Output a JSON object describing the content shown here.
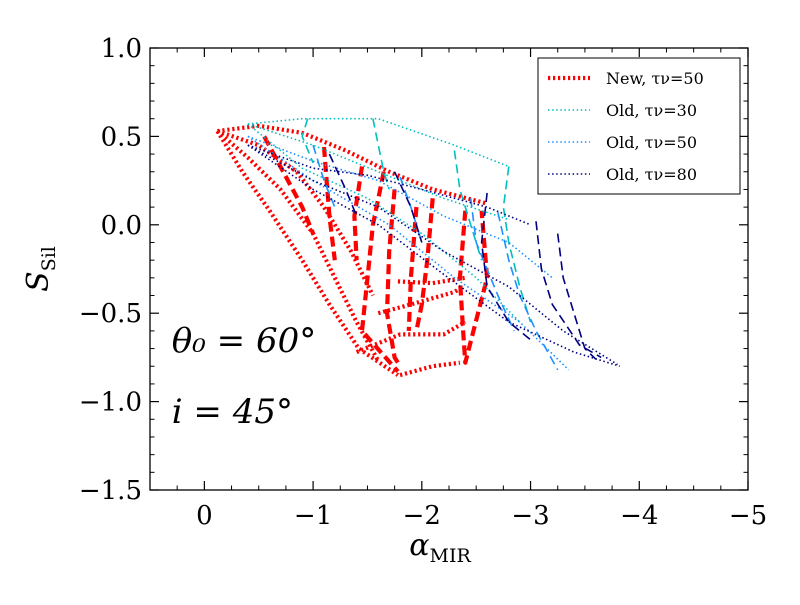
{
  "chart_data": {
    "type": "line",
    "xlabel": "α",
    "xlabel_sub": "MIR",
    "ylabel": "S",
    "ylabel_sub": "Sil",
    "xlim": [
      0.5,
      -5.0
    ],
    "ylim": [
      -1.5,
      1.0
    ],
    "xticks": [
      0,
      -1,
      -2,
      -3,
      -4,
      -5
    ],
    "xtick_labels": [
      "0",
      "−1",
      "−2",
      "−3",
      "−4",
      "−5"
    ],
    "yticks": [
      1.0,
      0.5,
      0.0,
      -0.5,
      -1.0,
      -1.5
    ],
    "ytick_labels": [
      "1.0",
      "0.5",
      "0.0",
      "−0.5",
      "−1.0",
      "−1.5"
    ],
    "annotations": [
      {
        "id": "theta",
        "text": "θ₀ = 60°",
        "x": 0.3,
        "y": -0.72
      },
      {
        "id": "incl",
        "text": "i = 45°",
        "x": 0.3,
        "y": -1.12
      }
    ],
    "legend": {
      "position": "top-right",
      "entries": [
        {
          "series": "new50",
          "label": "New, τν=50"
        },
        {
          "series": "old30",
          "label": "Old, τν=30"
        },
        {
          "series": "old50",
          "label": "Old, τν=50"
        },
        {
          "series": "old80",
          "label": "Old, τν=80"
        }
      ]
    },
    "series": [
      {
        "name": "New, τν=50",
        "key": "new50",
        "color": "#ff0000",
        "lines": [
          {
            "style": "dotted",
            "points": [
              [
                -0.12,
                0.53
              ],
              [
                -0.5,
                0.56
              ],
              [
                -0.9,
                0.52
              ],
              [
                -1.3,
                0.42
              ],
              [
                -1.7,
                0.3
              ],
              [
                -2.1,
                0.2
              ],
              [
                -2.6,
                0.12
              ]
            ]
          },
          {
            "style": "dotted",
            "points": [
              [
                -0.12,
                0.53
              ],
              [
                -0.5,
                0.45
              ],
              [
                -0.85,
                0.3
              ],
              [
                -1.1,
                0.1
              ],
              [
                -1.35,
                -0.15
              ],
              [
                -1.55,
                -0.4
              ]
            ]
          },
          {
            "style": "dotted",
            "points": [
              [
                -0.12,
                0.53
              ],
              [
                -0.4,
                0.38
              ],
              [
                -0.7,
                0.2
              ],
              [
                -1.0,
                -0.05
              ],
              [
                -1.2,
                -0.3
              ],
              [
                -1.4,
                -0.55
              ],
              [
                -1.6,
                -0.77
              ]
            ]
          },
          {
            "style": "dotted",
            "points": [
              [
                -0.12,
                0.53
              ],
              [
                -0.35,
                0.3
              ],
              [
                -0.6,
                0.08
              ],
              [
                -0.9,
                -0.2
              ],
              [
                -1.15,
                -0.45
              ],
              [
                -1.42,
                -0.7
              ],
              [
                -1.78,
                -0.85
              ]
            ]
          },
          {
            "style": "dotted",
            "points": [
              [
                -1.4,
                -0.72
              ],
              [
                -1.8,
                -0.62
              ],
              [
                -2.2,
                -0.62
              ],
              [
                -2.4,
                -0.55
              ]
            ]
          },
          {
            "style": "dotted",
            "points": [
              [
                -1.6,
                -0.5
              ],
              [
                -1.9,
                -0.45
              ],
              [
                -2.3,
                -0.38
              ],
              [
                -2.38,
                -0.35
              ]
            ]
          },
          {
            "style": "dotted",
            "points": [
              [
                -1.78,
                -0.32
              ],
              [
                -2.1,
                -0.33
              ],
              [
                -2.4,
                -0.3
              ]
            ]
          },
          {
            "style": "dotted",
            "points": [
              [
                -1.8,
                -0.85
              ],
              [
                -2.1,
                -0.8
              ],
              [
                -2.35,
                -0.78
              ]
            ]
          },
          {
            "style": "dashed",
            "points": [
              [
                -0.55,
                0.5
              ],
              [
                -0.9,
                0.1
              ],
              [
                -1.0,
                -0.05
              ]
            ]
          },
          {
            "style": "dashed",
            "points": [
              [
                -1.1,
                0.44
              ],
              [
                -1.15,
                0.05
              ],
              [
                -1.2,
                -0.2
              ]
            ]
          },
          {
            "style": "dashed",
            "points": [
              [
                -1.45,
                0.33
              ],
              [
                -1.38,
                0.05
              ],
              [
                -1.4,
                -0.2
              ]
            ]
          },
          {
            "style": "dashed",
            "points": [
              [
                -1.65,
                0.3
              ],
              [
                -1.55,
                0.0
              ],
              [
                -1.5,
                -0.3
              ],
              [
                -1.45,
                -0.6
              ],
              [
                -1.78,
                -0.83
              ]
            ]
          },
          {
            "style": "dashed",
            "points": [
              [
                -1.75,
                0.2
              ],
              [
                -1.7,
                -0.15
              ],
              [
                -1.68,
                -0.5
              ],
              [
                -1.75,
                -0.75
              ],
              [
                -1.78,
                -0.78
              ]
            ]
          },
          {
            "style": "dashed",
            "points": [
              [
                -1.95,
                0.1
              ],
              [
                -1.9,
                -0.3
              ],
              [
                -1.88,
                -0.6
              ]
            ]
          },
          {
            "style": "dashed",
            "points": [
              [
                -2.1,
                0.15
              ],
              [
                -2.05,
                -0.2
              ],
              [
                -2.0,
                -0.45
              ],
              [
                -1.95,
                -0.6
              ]
            ]
          },
          {
            "style": "dashed",
            "points": [
              [
                -2.4,
                0.08
              ],
              [
                -2.35,
                -0.3
              ],
              [
                -2.38,
                -0.6
              ],
              [
                -2.4,
                -0.78
              ],
              [
                -2.6,
                -0.3
              ],
              [
                -2.55,
                0.08
              ]
            ]
          }
        ]
      },
      {
        "name": "Old, τν=30",
        "key": "old30",
        "color": "#00bfbf",
        "lines": [
          {
            "style": "dotted",
            "points": [
              [
                -0.4,
                0.57
              ],
              [
                -0.9,
                0.6
              ],
              [
                -1.6,
                0.6
              ],
              [
                -2.3,
                0.45
              ],
              [
                -2.8,
                0.33
              ]
            ]
          },
          {
            "style": "dotted",
            "points": [
              [
                -0.4,
                0.57
              ],
              [
                -1.0,
                0.45
              ],
              [
                -1.6,
                0.3
              ],
              [
                -2.2,
                0.15
              ],
              [
                -2.8,
                0.03
              ]
            ]
          },
          {
            "style": "dotted",
            "points": [
              [
                -0.4,
                0.57
              ],
              [
                -0.9,
                0.32
              ],
              [
                -1.5,
                0.15
              ],
              [
                -2.0,
                -0.05
              ],
              [
                -2.5,
                -0.3
              ],
              [
                -2.9,
                -0.55
              ]
            ]
          },
          {
            "style": "dashed",
            "points": [
              [
                -0.95,
                0.6
              ],
              [
                -0.9,
                0.5
              ],
              [
                -1.0,
                0.35
              ]
            ]
          },
          {
            "style": "dashed",
            "points": [
              [
                -1.55,
                0.6
              ],
              [
                -1.6,
                0.45
              ],
              [
                -1.65,
                0.3
              ],
              [
                -1.7,
                0.2
              ]
            ]
          },
          {
            "style": "dashed",
            "points": [
              [
                -2.3,
                0.42
              ],
              [
                -2.35,
                0.2
              ],
              [
                -2.45,
                0.0
              ],
              [
                -2.55,
                -0.2
              ]
            ]
          },
          {
            "style": "dashed",
            "points": [
              [
                -2.8,
                0.33
              ],
              [
                -2.75,
                0.1
              ],
              [
                -2.8,
                -0.1
              ],
              [
                -2.9,
                -0.35
              ],
              [
                -3.0,
                -0.55
              ]
            ]
          }
        ]
      },
      {
        "name": "Old, τν=50",
        "key": "old50",
        "color": "#1e90ff",
        "lines": [
          {
            "style": "dotted",
            "points": [
              [
                -0.4,
                0.5
              ],
              [
                -1.0,
                0.36
              ],
              [
                -1.6,
                0.25
              ],
              [
                -2.2,
                0.05
              ],
              [
                -2.8,
                -0.1
              ],
              [
                -3.2,
                -0.3
              ]
            ]
          },
          {
            "style": "dotted",
            "points": [
              [
                -0.4,
                0.5
              ],
              [
                -1.0,
                0.25
              ],
              [
                -1.7,
                0.0
              ],
              [
                -2.3,
                -0.3
              ],
              [
                -2.9,
                -0.55
              ],
              [
                -3.35,
                -0.82
              ]
            ]
          },
          {
            "style": "dashed",
            "points": [
              [
                -1.0,
                0.45
              ],
              [
                -1.1,
                0.25
              ],
              [
                -1.2,
                0.1
              ]
            ]
          },
          {
            "style": "dashed",
            "points": [
              [
                -1.8,
                0.27
              ],
              [
                -1.9,
                0.1
              ],
              [
                -2.0,
                -0.1
              ]
            ]
          },
          {
            "style": "dashed",
            "points": [
              [
                -2.45,
                0.15
              ],
              [
                -2.5,
                -0.1
              ],
              [
                -2.7,
                -0.4
              ],
              [
                -2.85,
                -0.6
              ]
            ]
          },
          {
            "style": "dashed",
            "points": [
              [
                -2.7,
                0.07
              ],
              [
                -2.8,
                -0.2
              ],
              [
                -2.9,
                -0.4
              ],
              [
                -3.05,
                -0.6
              ],
              [
                -3.25,
                -0.82
              ]
            ]
          }
        ]
      },
      {
        "name": "Old, τν=80",
        "key": "old80",
        "color": "#000080",
        "lines": [
          {
            "style": "dotted",
            "points": [
              [
                -0.4,
                0.45
              ],
              [
                -1.0,
                0.32
              ],
              [
                -1.5,
                0.28
              ],
              [
                -2.0,
                0.2
              ],
              [
                -2.6,
                0.1
              ],
              [
                -3.0,
                0.0
              ]
            ]
          },
          {
            "style": "dotted",
            "points": [
              [
                -0.4,
                0.45
              ],
              [
                -1.0,
                0.25
              ],
              [
                -1.6,
                0.1
              ],
              [
                -2.2,
                -0.15
              ],
              [
                -2.8,
                -0.35
              ],
              [
                -3.3,
                -0.6
              ],
              [
                -3.8,
                -0.79
              ]
            ]
          },
          {
            "style": "dotted",
            "points": [
              [
                -0.4,
                0.45
              ],
              [
                -1.0,
                0.2
              ],
              [
                -1.6,
                0.0
              ],
              [
                -2.2,
                -0.28
              ],
              [
                -2.8,
                -0.55
              ],
              [
                -3.4,
                -0.72
              ],
              [
                -3.82,
                -0.8
              ]
            ]
          },
          {
            "style": "dashed",
            "points": [
              [
                -1.15,
                0.4
              ],
              [
                -1.3,
                0.2
              ],
              [
                -1.4,
                0.05
              ]
            ]
          },
          {
            "style": "dashed",
            "points": [
              [
                -1.75,
                0.3
              ],
              [
                -1.9,
                0.1
              ],
              [
                -2.0,
                -0.1
              ]
            ]
          },
          {
            "style": "dashed",
            "points": [
              [
                -2.6,
                0.18
              ],
              [
                -2.55,
                -0.1
              ],
              [
                -2.6,
                -0.35
              ],
              [
                -2.8,
                -0.55
              ],
              [
                -3.0,
                -0.65
              ]
            ]
          },
          {
            "style": "dashed",
            "points": [
              [
                -3.05,
                0.02
              ],
              [
                -3.1,
                -0.25
              ],
              [
                -3.2,
                -0.45
              ],
              [
                -3.45,
                -0.68
              ],
              [
                -3.65,
                -0.75
              ]
            ]
          },
          {
            "style": "dashed",
            "points": [
              [
                -3.25,
                -0.05
              ],
              [
                -3.3,
                -0.3
              ],
              [
                -3.4,
                -0.5
              ],
              [
                -3.5,
                -0.7
              ],
              [
                -3.6,
                -0.76
              ]
            ]
          }
        ]
      }
    ]
  }
}
